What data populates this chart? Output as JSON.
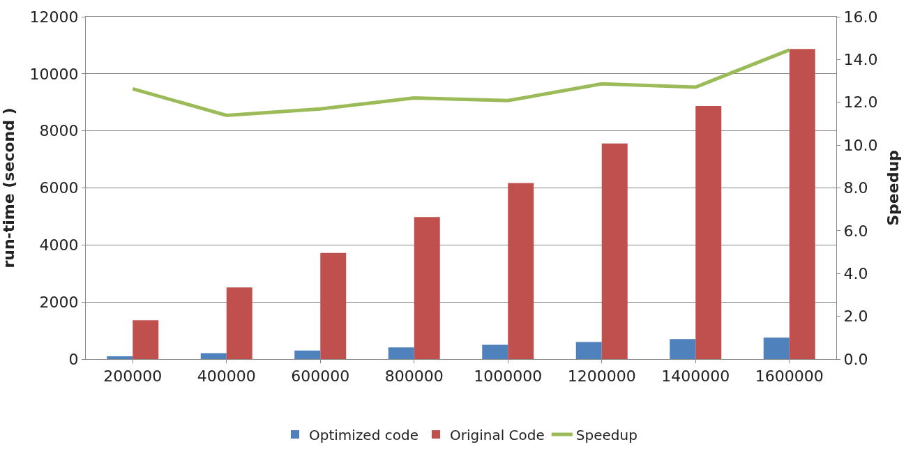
{
  "chart_data": {
    "type": "bar",
    "ylabel": "run-time (second )",
    "y2label": "Speedup",
    "categories": [
      "200000",
      "400000",
      "600000",
      "800000",
      "1000000",
      "1200000",
      "1400000",
      "1600000"
    ],
    "series": [
      {
        "name": "Optimized code",
        "color": "#4f81bd",
        "values": [
          100,
          210,
          300,
          410,
          500,
          600,
          700,
          750
        ]
      },
      {
        "name": "Original Code",
        "color": "#c0504d",
        "values": [
          1360,
          2510,
          3720,
          4980,
          6170,
          7560,
          8870,
          10870
        ]
      },
      {
        "name": "Speedup",
        "type": "line",
        "axis": "y2",
        "color": "#9bbb59",
        "values": [
          12.63,
          11.39,
          11.69,
          12.2,
          12.08,
          12.86,
          12.71,
          14.45
        ]
      }
    ],
    "ylim": [
      0,
      12000
    ],
    "yticks": [
      0,
      2000,
      4000,
      6000,
      8000,
      10000,
      12000
    ],
    "y2lim": [
      0,
      16
    ],
    "y2ticks": [
      {
        "value": 0,
        "label": "0.0"
      },
      {
        "value": 2,
        "label": "2.0"
      },
      {
        "value": 4,
        "label": "4.0"
      },
      {
        "value": 6,
        "label": "6.0"
      },
      {
        "value": 8,
        "label": "8.0"
      },
      {
        "value": 10,
        "label": "10.0"
      },
      {
        "value": 12,
        "label": "12.0"
      },
      {
        "value": 14,
        "label": "14.0"
      },
      {
        "value": 16,
        "label": "16.0"
      }
    ],
    "grid": "y",
    "legend": "bottom",
    "marker": "none",
    "line_style": "solid"
  }
}
